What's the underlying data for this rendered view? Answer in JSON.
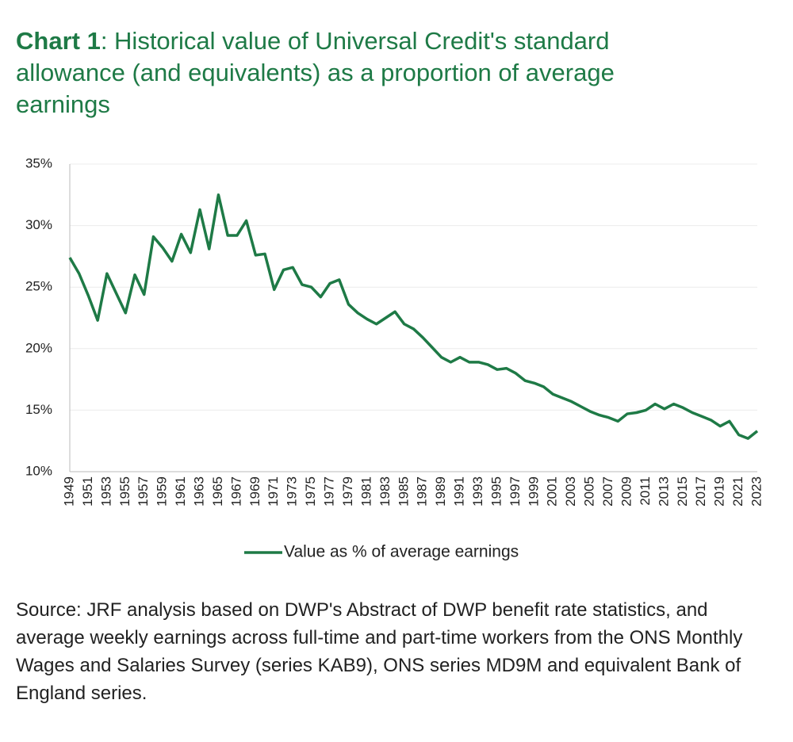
{
  "chart_data": {
    "type": "line",
    "title_lead": "Chart 1",
    "title": ": Historical value of Universal Credit's standard allowance (and equivalents) as a proportion of average earnings",
    "categories": [
      "1949",
      null,
      "1951",
      null,
      "1953",
      null,
      "1955",
      null,
      "1957",
      null,
      "1959",
      null,
      "1961",
      null,
      "1963",
      null,
      "1965",
      null,
      "1967",
      null,
      "1969",
      null,
      "1971",
      null,
      "1973",
      null,
      "1975",
      null,
      "1977",
      null,
      "1979",
      null,
      "1981",
      null,
      "1983",
      null,
      "1985",
      null,
      "1987",
      null,
      "1989",
      null,
      "1991",
      null,
      "1993",
      null,
      "1995",
      null,
      "1997",
      null,
      "1999",
      null,
      "2001",
      null,
      "2003",
      null,
      "2005",
      null,
      "2007",
      null,
      "2009",
      null,
      "2011",
      null,
      "2013",
      null,
      "2015",
      null,
      "2017",
      null,
      "2019",
      null,
      "2021",
      null,
      "2023"
    ],
    "series": [
      {
        "name": "Value as % of average earnings",
        "color": "#1e7a46",
        "values": [
          27.4,
          26.1,
          24.3,
          22.3,
          26.1,
          24.5,
          22.9,
          26.0,
          24.4,
          29.1,
          28.2,
          27.1,
          29.3,
          27.8,
          31.3,
          28.1,
          32.5,
          29.2,
          29.2,
          30.4,
          27.6,
          27.7,
          24.8,
          26.4,
          26.6,
          25.2,
          25.0,
          24.2,
          25.3,
          25.6,
          23.6,
          22.9,
          22.4,
          22.0,
          22.5,
          23.0,
          22.0,
          21.6,
          20.9,
          20.1,
          19.3,
          18.9,
          19.3,
          18.9,
          18.9,
          18.7,
          18.3,
          18.4,
          18.0,
          17.4,
          17.2,
          16.9,
          16.3,
          16.0,
          15.7,
          15.3,
          14.9,
          14.6,
          14.4,
          14.1,
          14.7,
          14.8,
          15.0,
          15.5,
          15.1,
          15.5,
          15.2,
          14.8,
          14.5,
          14.2,
          13.7,
          14.1,
          13.0,
          12.7,
          13.3
        ]
      }
    ],
    "ylim": [
      10,
      35
    ],
    "yticks": [
      {
        "value": 10,
        "label": "10%"
      },
      {
        "value": 15,
        "label": "15%"
      },
      {
        "value": 20,
        "label": "20%"
      },
      {
        "value": 25,
        "label": "25%"
      },
      {
        "value": 30,
        "label": "30%"
      },
      {
        "value": 35,
        "label": "35%"
      }
    ],
    "grid": true,
    "legend": "bottom",
    "source": "Source: JRF analysis based on DWP's Abstract of DWP benefit rate statistics, and average weekly earnings across full-time and part-time workers from the ONS Monthly Wages and Salaries Survey (series KAB9), ONS series MD9M and equivalent Bank of England series."
  }
}
